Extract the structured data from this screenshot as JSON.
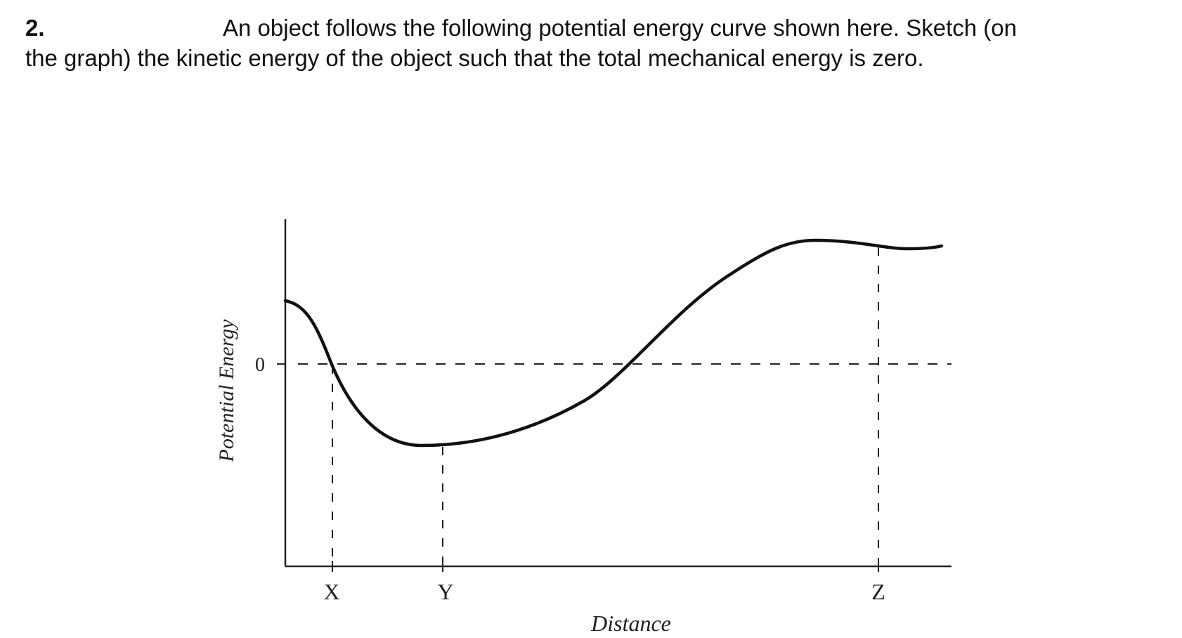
{
  "question": {
    "number": "2.",
    "text_line1": "An object follows the following potential energy curve shown here. Sketch (on",
    "text_line2": "the graph) the kinetic energy of the object such that the total mechanical energy is zero."
  },
  "figure": {
    "y_axis_label": "Potential Energy",
    "x_axis_label": "Distance",
    "zero_label": "0",
    "point_labels": [
      "X",
      "Y",
      "Z"
    ],
    "line_color": "#111111"
  }
}
